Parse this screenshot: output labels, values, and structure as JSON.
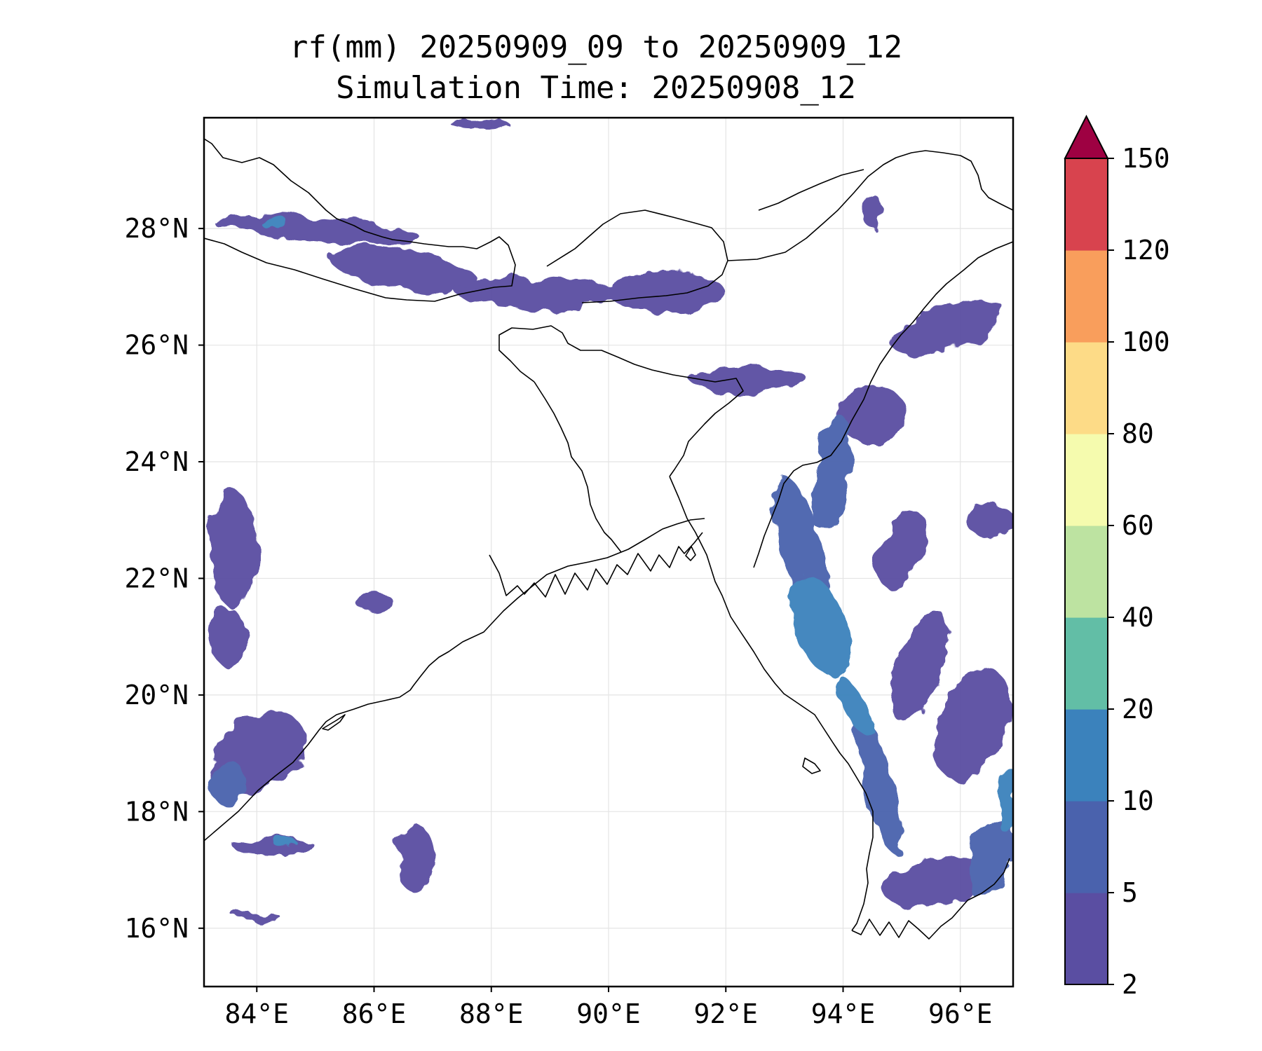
{
  "figure": {
    "title_line1": "rf(mm) 20250909_09 to 20250909_12",
    "title_line2": "Simulation Time: 20250908_12"
  },
  "map": {
    "lon_range": [
      83.1,
      96.9
    ],
    "lat_range": [
      15.0,
      29.9
    ],
    "lon_ticks": [
      84,
      86,
      88,
      90,
      92,
      94,
      96
    ],
    "lat_ticks": [
      16,
      18,
      20,
      22,
      24,
      26,
      28
    ],
    "lon_tick_labels": [
      "84°E",
      "86°E",
      "88°E",
      "90°E",
      "92°E",
      "94°E",
      "96°E"
    ],
    "lat_tick_labels": [
      "16°N",
      "18°N",
      "20°N",
      "22°N",
      "24°N",
      "26°N",
      "28°N"
    ],
    "gridlines": true,
    "coastline_color": "#000000"
  },
  "colorbar": {
    "levels": [
      "2",
      "5",
      "10",
      "20",
      "40",
      "60",
      "80",
      "100",
      "120",
      "150"
    ],
    "colors": [
      "#5a4ea2",
      "#4a62ad",
      "#3b82bc",
      "#62bea6",
      "#bde3a1",
      "#f5fbae",
      "#fddb87",
      "#f99e5c",
      "#d8434e",
      "#9e0142"
    ],
    "extend": "max"
  },
  "rain_areas": [
    {
      "lon": 93.6,
      "lat": 21.2,
      "level": 3,
      "rx": 0.45,
      "ry": 0.9,
      "rot": -20
    },
    {
      "lon": 93.3,
      "lat": 22.5,
      "level": 2,
      "rx": 0.35,
      "ry": 1.3,
      "rot": -15
    },
    {
      "lon": 94.2,
      "lat": 19.8,
      "level": 3,
      "rx": 0.2,
      "ry": 0.6,
      "rot": -30
    },
    {
      "lon": 94.6,
      "lat": 18.5,
      "level": 2,
      "rx": 0.25,
      "ry": 1.3,
      "rot": -15
    },
    {
      "lon": 93.8,
      "lat": 23.8,
      "level": 2,
      "rx": 0.3,
      "ry": 1.0,
      "rot": 10
    },
    {
      "lon": 94.5,
      "lat": 24.8,
      "level": 1,
      "rx": 0.6,
      "ry": 0.5,
      "rot": 0
    },
    {
      "lon": 92.4,
      "lat": 25.4,
      "level": 1,
      "rx": 1.0,
      "ry": 0.25,
      "rot": 0
    },
    {
      "lon": 96.8,
      "lat": 18.2,
      "level": 3,
      "rx": 0.15,
      "ry": 0.6,
      "rot": 0
    },
    {
      "lon": 96.5,
      "lat": 17.2,
      "level": 2,
      "rx": 0.35,
      "ry": 0.7,
      "rot": 20
    },
    {
      "lon": 96.2,
      "lat": 19.5,
      "level": 1,
      "rx": 0.6,
      "ry": 1.0,
      "rot": 20
    },
    {
      "lon": 95.3,
      "lat": 20.5,
      "level": 1,
      "rx": 0.4,
      "ry": 1.0,
      "rot": 20
    },
    {
      "lon": 95.6,
      "lat": 16.8,
      "level": 1,
      "rx": 0.9,
      "ry": 0.4,
      "rot": -15
    },
    {
      "lon": 95.8,
      "lat": 26.3,
      "level": 1,
      "rx": 1.0,
      "ry": 0.35,
      "rot": -20
    },
    {
      "lon": 85.0,
      "lat": 28.0,
      "level": 1,
      "rx": 1.8,
      "ry": 0.2,
      "rot": 5
    },
    {
      "lon": 84.3,
      "lat": 28.1,
      "level": 3,
      "rx": 0.25,
      "ry": 0.08,
      "rot": 0
    },
    {
      "lon": 86.5,
      "lat": 27.3,
      "level": 1,
      "rx": 1.3,
      "ry": 0.35,
      "rot": 10
    },
    {
      "lon": 88.8,
      "lat": 26.9,
      "level": 1,
      "rx": 1.4,
      "ry": 0.25,
      "rot": 0
    },
    {
      "lon": 91.0,
      "lat": 26.9,
      "level": 1,
      "rx": 1.0,
      "ry": 0.35,
      "rot": 0
    },
    {
      "lon": 84.3,
      "lat": 17.4,
      "level": 1,
      "rx": 0.7,
      "ry": 0.15,
      "rot": 0
    },
    {
      "lon": 84.5,
      "lat": 17.45,
      "level": 3,
      "rx": 0.2,
      "ry": 0.08,
      "rot": 0
    },
    {
      "lon": 83.5,
      "lat": 18.5,
      "level": 2,
      "rx": 0.3,
      "ry": 0.4,
      "rot": 0
    },
    {
      "lon": 84.0,
      "lat": 19.0,
      "level": 1,
      "rx": 0.9,
      "ry": 0.6,
      "rot": -30
    },
    {
      "lon": 86.7,
      "lat": 17.2,
      "level": 1,
      "rx": 0.3,
      "ry": 0.6,
      "rot": 0
    },
    {
      "lon": 83.6,
      "lat": 22.5,
      "level": 1,
      "rx": 0.4,
      "ry": 1.0,
      "rot": 0
    },
    {
      "lon": 84.0,
      "lat": 16.2,
      "level": 1,
      "rx": 0.4,
      "ry": 0.08,
      "rot": 0
    },
    {
      "lon": 83.5,
      "lat": 21.0,
      "level": 1,
      "rx": 0.3,
      "ry": 0.5,
      "rot": 0
    },
    {
      "lon": 86.0,
      "lat": 21.6,
      "level": 1,
      "rx": 0.3,
      "ry": 0.2,
      "rot": 0
    },
    {
      "lon": 95.0,
      "lat": 22.5,
      "level": 1,
      "rx": 0.4,
      "ry": 0.7,
      "rot": 20
    },
    {
      "lon": 96.5,
      "lat": 23.0,
      "level": 1,
      "rx": 0.4,
      "ry": 0.3,
      "rot": 0
    },
    {
      "lon": 94.5,
      "lat": 28.3,
      "level": 1,
      "rx": 0.15,
      "ry": 0.3,
      "rot": 0
    },
    {
      "lon": 87.8,
      "lat": 29.8,
      "level": 1,
      "rx": 0.5,
      "ry": 0.1,
      "rot": 0
    }
  ]
}
